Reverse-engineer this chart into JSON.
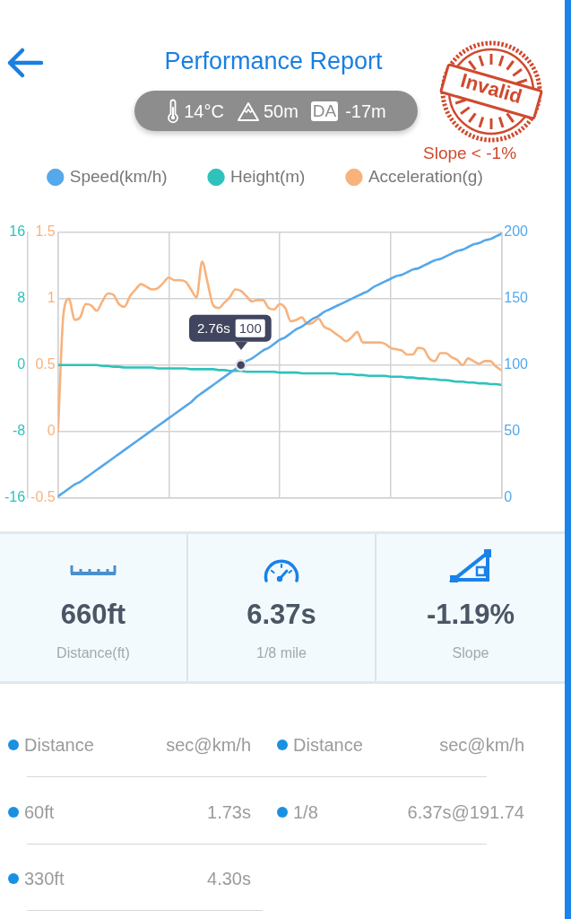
{
  "chart_data": [
    {
      "type": "line",
      "title": "Performance Report",
      "annotations": [
        "14°C",
        "50m",
        "DA",
        "-17m",
        "Invalid",
        "Slope < -1%",
        "2.76s",
        "100"
      ],
      "categories": [
        null,
        null,
        null,
        null,
        null,
        null,
        null,
        null,
        null,
        null,
        null,
        null,
        null,
        null,
        null,
        null,
        null,
        null,
        null,
        null,
        null,
        null,
        null,
        null,
        null,
        null,
        null,
        null,
        null,
        null,
        null,
        null,
        null,
        null,
        null,
        null,
        null,
        null,
        null,
        null,
        null,
        null,
        null,
        null,
        null,
        null,
        null,
        null,
        null,
        null,
        null,
        null,
        null,
        null,
        null,
        null,
        null,
        null,
        null,
        null,
        null,
        null,
        null,
        null,
        null,
        null,
        null,
        null,
        null,
        null,
        null,
        null,
        null,
        null,
        null,
        null,
        null,
        null,
        null,
        null,
        null
      ],
      "series": [
        {
          "name": "Speed(km/h)",
          "color": "#55a8ea",
          "axis": "y2",
          "values": [
            1,
            4,
            7,
            10,
            12,
            15,
            18,
            21,
            24,
            27,
            30,
            33,
            36,
            39,
            42,
            45,
            48,
            51,
            54,
            57,
            60,
            63,
            66,
            69,
            72,
            76,
            79,
            82,
            85,
            88,
            91,
            94,
            97,
            100,
            103,
            105,
            108,
            111,
            113,
            116,
            119,
            121,
            124,
            127,
            129,
            132,
            135,
            137,
            140,
            142,
            144,
            146,
            148,
            150,
            152,
            154,
            156,
            159,
            161,
            163,
            165,
            167,
            168,
            170,
            172,
            173,
            175,
            177,
            179,
            180,
            182,
            184,
            186,
            187,
            189,
            191,
            192,
            194,
            195,
            197,
            199
          ]
        },
        {
          "name": "Height(m)",
          "color": "#2ec2bb",
          "axis": "y3",
          "values": [
            0,
            0,
            0,
            0,
            0,
            0,
            0,
            0,
            -0.1,
            -0.1,
            -0.2,
            -0.2,
            -0.3,
            -0.3,
            -0.3,
            -0.3,
            -0.3,
            -0.3,
            -0.4,
            -0.4,
            -0.4,
            -0.4,
            -0.4,
            -0.4,
            -0.5,
            -0.5,
            -0.5,
            -0.5,
            -0.5,
            -0.6,
            -0.6,
            -0.7,
            -0.7,
            -0.7,
            -0.8,
            -0.8,
            -0.8,
            -0.8,
            -0.8,
            -0.8,
            -0.9,
            -0.9,
            -0.9,
            -0.9,
            -1.0,
            -1.0,
            -1.0,
            -1.0,
            -1.0,
            -1.0,
            -1.0,
            -1.1,
            -1.1,
            -1.1,
            -1.2,
            -1.2,
            -1.3,
            -1.3,
            -1.3,
            -1.3,
            -1.4,
            -1.4,
            -1.4,
            -1.5,
            -1.5,
            -1.6,
            -1.6,
            -1.7,
            -1.7,
            -1.8,
            -1.8,
            -1.9,
            -2.0,
            -2.0,
            -2.1,
            -2.1,
            -2.2,
            -2.2,
            -2.3,
            -2.3,
            -2.4
          ]
        },
        {
          "name": "Acceleration(g)",
          "color": "#f8b27c",
          "values": [
            0,
            0.89,
            1.0,
            0.84,
            0.86,
            0.96,
            0.95,
            0.91,
            0.98,
            1.04,
            1.03,
            0.96,
            0.94,
            1.02,
            1.07,
            1.11,
            1.09,
            1.07,
            1.08,
            1.12,
            1.16,
            1.14,
            1.14,
            1.13,
            1.07,
            1.01,
            1.28,
            1.12,
            0.95,
            0.93,
            0.97,
            1.01,
            1.07,
            1.06,
            1.02,
            0.98,
            0.99,
            0.99,
            0.93,
            0.92,
            0.96,
            0.93,
            0.83,
            0.84,
            0.86,
            0.81,
            0.82,
            0.85,
            0.79,
            0.77,
            0.74,
            0.71,
            0.68,
            0.71,
            0.75,
            0.67,
            0.67,
            0.67,
            0.67,
            0.66,
            0.63,
            0.62,
            0.61,
            0.58,
            0.58,
            0.63,
            0.62,
            0.55,
            0.53,
            0.59,
            0.59,
            0.56,
            0.54,
            0.5,
            0.55,
            0.53,
            0.51,
            0.53,
            0.53,
            0.49,
            0.46
          ]
        },
        {
          "type": "scatter",
          "color": "#41455f",
          "axis": "y2",
          "marker": "circle",
          "values": [
            null,
            null,
            null,
            null,
            null,
            null,
            null,
            null,
            null,
            null,
            null,
            null,
            null,
            null,
            null,
            null,
            null,
            null,
            null,
            null,
            null,
            null,
            null,
            null,
            null,
            null,
            null,
            null,
            null,
            null,
            null,
            null,
            null,
            100,
            null,
            null,
            null,
            null,
            null,
            null,
            null,
            null,
            null,
            null,
            null,
            null,
            null,
            null,
            null,
            null,
            null,
            null,
            null,
            null,
            null,
            null,
            null,
            null,
            null,
            null,
            null,
            null,
            null,
            null,
            null,
            null,
            null,
            null,
            null,
            null,
            null,
            null,
            null,
            null,
            null,
            null,
            null,
            null,
            null,
            null,
            null
          ]
        }
      ],
      "ylim": [
        -0.5,
        1.5
      ],
      "yticks": [
        -0.5,
        0,
        0.5,
        1,
        1.5
      ],
      "y2lim": [
        0,
        200
      ],
      "y2ticks": [
        0,
        50,
        100,
        150,
        200
      ],
      "y3lim": [
        -16,
        16
      ],
      "y3ticks": [
        -16,
        -8,
        0,
        8,
        16
      ],
      "grid": true,
      "legend": "top",
      "marker": "none"
    },
    {
      "type": "other",
      "annotations": [
        "660ft",
        "Distance(ft)",
        "6.37s",
        "1/8 mile",
        "-1.19%",
        "Slope",
        "Distance",
        "sec@km/h",
        "Distance",
        "sec@km/h",
        "60ft",
        "1.73s",
        "1/8",
        "6.37s@191.74",
        "330ft",
        "4.30s"
      ]
    }
  ]
}
